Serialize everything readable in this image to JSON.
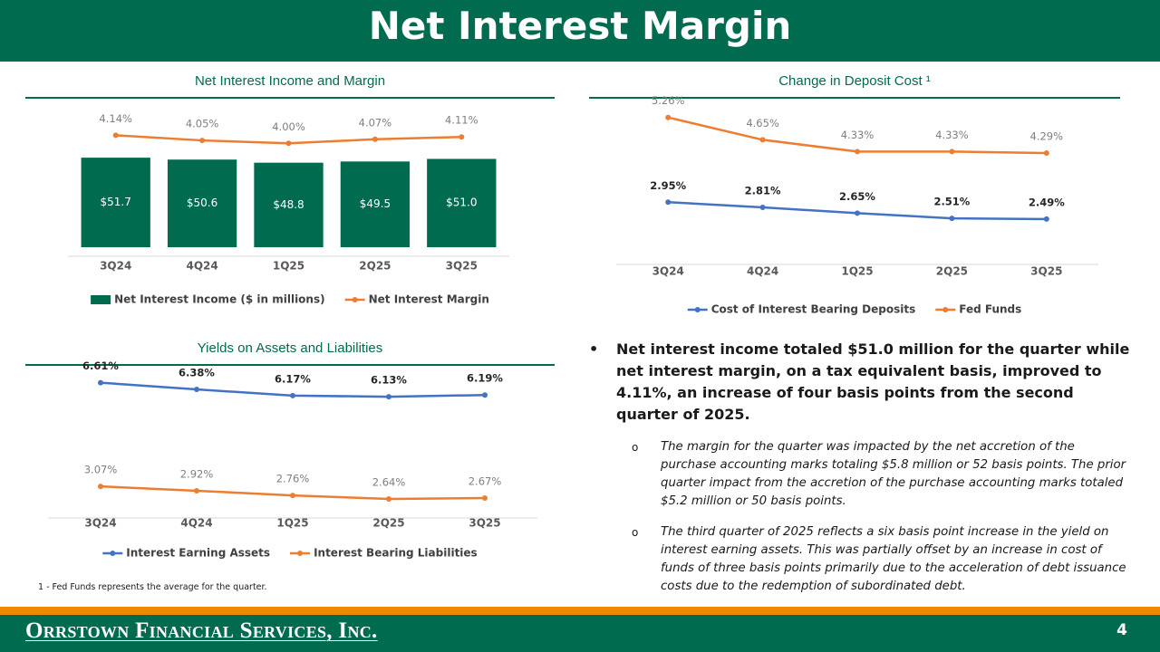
{
  "header": {
    "title": "Net Interest Margin"
  },
  "chart_data": [
    {
      "type": "combo",
      "title": "Net Interest Income and Margin",
      "categories": [
        "3Q24",
        "4Q24",
        "1Q25",
        "2Q25",
        "3Q25"
      ],
      "ylim": [
        0,
        80
      ],
      "y2lim": [
        2.2,
        4.6
      ],
      "series": [
        {
          "name": "Net Interest Income ($ in millions)",
          "type": "bar",
          "color": "#006b4f",
          "values": [
            51.7,
            50.6,
            48.8,
            49.5,
            51.0
          ],
          "value_labels": [
            "$51.7",
            "$50.6",
            "$48.8",
            "$49.5",
            "$51.0"
          ]
        },
        {
          "name": "Net Interest Margin",
          "type": "line",
          "axis": "y2",
          "color": "#ed7d31",
          "values": [
            4.14,
            4.05,
            4.0,
            4.07,
            4.11
          ],
          "value_labels": [
            "4.14%",
            "4.05%",
            "4.00%",
            "4.07%",
            "4.11%"
          ]
        }
      ]
    },
    {
      "type": "line",
      "title": "Change in Deposit Cost ¹",
      "categories": [
        "3Q24",
        "4Q24",
        "1Q25",
        "2Q25",
        "3Q25"
      ],
      "ylim": [
        1.5,
        5.5
      ],
      "series": [
        {
          "name": "Cost of Interest Bearing Deposits",
          "color": "#4472c4",
          "values": [
            2.95,
            2.81,
            2.65,
            2.51,
            2.49
          ],
          "value_labels": [
            "2.95%",
            "2.81%",
            "2.65%",
            "2.51%",
            "2.49%"
          ]
        },
        {
          "name": "Fed Funds",
          "color": "#ed7d31",
          "values": [
            5.26,
            4.65,
            4.33,
            4.33,
            4.29
          ],
          "value_labels": [
            "5.26%",
            "4.65%",
            "4.33%",
            "4.33%",
            "4.29%"
          ]
        }
      ]
    },
    {
      "type": "line",
      "title": "Yields on Assets and Liabilities",
      "categories": [
        "3Q24",
        "4Q24",
        "1Q25",
        "2Q25",
        "3Q25"
      ],
      "ylim": [
        2.3,
        7.0
      ],
      "series": [
        {
          "name": "Interest Earning Assets",
          "color": "#4472c4",
          "values": [
            6.61,
            6.38,
            6.17,
            6.13,
            6.19
          ],
          "value_labels": [
            "6.61%",
            "6.38%",
            "6.17%",
            "6.13%",
            "6.19%"
          ]
        },
        {
          "name": "Interest Bearing Liabilities",
          "color": "#ed7d31",
          "values": [
            3.07,
            2.92,
            2.76,
            2.64,
            2.67
          ],
          "value_labels": [
            "3.07%",
            "2.92%",
            "2.76%",
            "2.64%",
            "2.67%"
          ]
        }
      ]
    }
  ],
  "bullets": {
    "main": "Net interest income totaled $51.0 million for the quarter while net interest margin, on a tax equivalent basis, improved to 4.11%, an increase of four basis points from the second quarter of 2025.",
    "sub": [
      "The margin for the quarter was impacted by the net accretion of the purchase accounting marks totaling $5.8 million or 52 basis points. The prior quarter impact from the accretion of the purchase accounting marks totaled $5.2 million or 50 basis points.",
      "The third quarter of 2025 reflects a six basis point increase in the yield on interest earning assets. This was partially offset by an increase in cost of funds of three basis points primarily due to the acceleration of debt issuance costs due to the redemption of subordinated debt."
    ]
  },
  "footnote": "1 - Fed Funds represents the average for the quarter.",
  "footer": {
    "company": "Orrstown Financial Services, Inc.",
    "page_number": "4"
  }
}
